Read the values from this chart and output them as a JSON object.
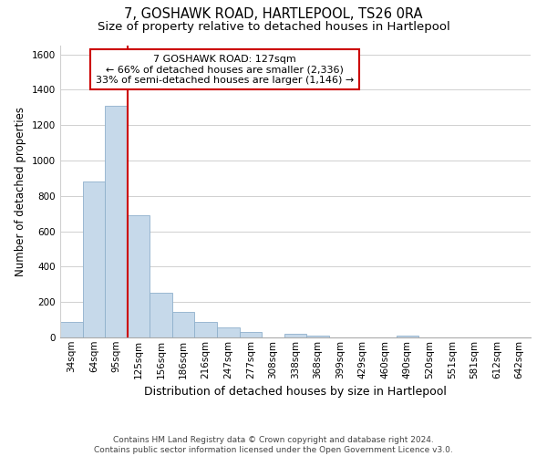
{
  "title": "7, GOSHAWK ROAD, HARTLEPOOL, TS26 0RA",
  "subtitle": "Size of property relative to detached houses in Hartlepool",
  "xlabel": "Distribution of detached houses by size in Hartlepool",
  "ylabel": "Number of detached properties",
  "bar_labels": [
    "34sqm",
    "64sqm",
    "95sqm",
    "125sqm",
    "156sqm",
    "186sqm",
    "216sqm",
    "247sqm",
    "277sqm",
    "308sqm",
    "338sqm",
    "368sqm",
    "399sqm",
    "429sqm",
    "460sqm",
    "490sqm",
    "520sqm",
    "551sqm",
    "581sqm",
    "612sqm",
    "642sqm"
  ],
  "bar_values": [
    88,
    880,
    1310,
    690,
    252,
    143,
    88,
    55,
    30,
    0,
    22,
    12,
    0,
    0,
    0,
    12,
    0,
    0,
    0,
    0,
    0
  ],
  "bar_color": "#c6d9ea",
  "bar_edge_color": "#8fb0cc",
  "highlight_line_color": "#cc0000",
  "highlight_bar_index": 2,
  "ylim": [
    0,
    1650
  ],
  "yticks": [
    0,
    200,
    400,
    600,
    800,
    1000,
    1200,
    1400,
    1600
  ],
  "annotation_title": "7 GOSHAWK ROAD: 127sqm",
  "annotation_line1": "← 66% of detached houses are smaller (2,336)",
  "annotation_line2": "33% of semi-detached houses are larger (1,146) →",
  "annotation_box_color": "#ffffff",
  "annotation_box_edge": "#cc0000",
  "footer_line1": "Contains HM Land Registry data © Crown copyright and database right 2024.",
  "footer_line2": "Contains public sector information licensed under the Open Government Licence v3.0.",
  "background_color": "#ffffff",
  "grid_color": "#d0d0d0",
  "title_fontsize": 10.5,
  "subtitle_fontsize": 9.5,
  "xlabel_fontsize": 9,
  "ylabel_fontsize": 8.5,
  "tick_fontsize": 7.5,
  "annotation_fontsize": 8,
  "footer_fontsize": 6.5
}
